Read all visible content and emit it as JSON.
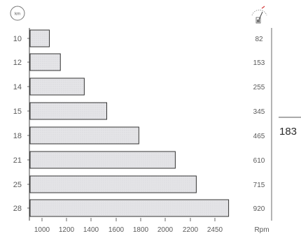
{
  "chart_data": {
    "type": "bar",
    "orientation": "horizontal",
    "categories": [
      "10",
      "12",
      "14",
      "15",
      "18",
      "21",
      "25",
      "28"
    ],
    "values": [
      1060,
      1150,
      1345,
      1525,
      1785,
      2080,
      2260,
      2590
    ],
    "right_values": [
      "82",
      "153",
      "255",
      "345",
      "465",
      "610",
      "715",
      "920"
    ],
    "xticks": [
      "1000",
      "1200",
      "1400",
      "1600",
      "1800",
      "2000",
      "2200",
      "2450"
    ],
    "xunit": "Rpm",
    "ylabel_icon_text": "km",
    "right_icon": "fuel-gauge-icon",
    "bar_color": "#e3e3e6",
    "bar_stroke": "#333333"
  },
  "page_number": "183"
}
